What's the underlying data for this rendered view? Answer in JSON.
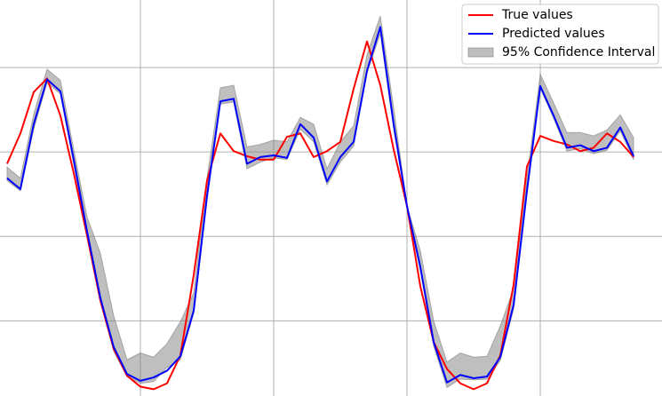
{
  "chart_data": {
    "type": "line",
    "x": [
      0,
      1,
      2,
      3,
      4,
      5,
      6,
      7,
      8,
      9,
      10,
      11,
      12,
      13,
      14,
      15,
      16,
      17,
      18,
      19,
      20,
      21,
      22,
      23,
      24,
      25,
      26,
      27,
      28,
      29,
      30,
      31,
      32,
      33,
      34,
      35,
      36,
      37,
      38,
      39,
      40,
      41,
      42,
      43,
      44,
      45,
      46,
      47
    ],
    "series": [
      {
        "name": "True values",
        "color": "#ff0000",
        "values": [
          -0.14,
          0.22,
          0.71,
          0.87,
          0.43,
          -0.25,
          -0.99,
          -1.76,
          -2.33,
          -2.65,
          -2.78,
          -2.81,
          -2.74,
          -2.41,
          -1.46,
          -0.34,
          0.22,
          0.01,
          -0.05,
          -0.09,
          -0.09,
          0.18,
          0.22,
          -0.06,
          0.01,
          0.12,
          0.75,
          1.31,
          0.79,
          0.03,
          -0.64,
          -1.59,
          -2.25,
          -2.57,
          -2.74,
          -2.81,
          -2.74,
          -2.41,
          -1.57,
          -0.17,
          0.19,
          0.13,
          0.09,
          0.01,
          0.05,
          0.22,
          0.12,
          -0.06
        ]
      },
      {
        "name": "Predicted values",
        "color": "#0000ff",
        "values": [
          -0.31,
          -0.44,
          0.33,
          0.86,
          0.72,
          -0.09,
          -0.94,
          -1.73,
          -2.31,
          -2.63,
          -2.71,
          -2.67,
          -2.59,
          -2.42,
          -1.88,
          -0.52,
          0.6,
          0.63,
          -0.14,
          -0.06,
          -0.04,
          -0.07,
          0.33,
          0.17,
          -0.35,
          -0.06,
          0.12,
          0.96,
          1.48,
          0.33,
          -0.64,
          -1.36,
          -2.25,
          -2.73,
          -2.64,
          -2.68,
          -2.66,
          -2.43,
          -1.81,
          -0.46,
          0.78,
          0.43,
          0.05,
          0.08,
          0.01,
          0.05,
          0.29,
          -0.05
        ]
      }
    ],
    "interval": {
      "name": "95% Confidence Interval",
      "color": "#808080",
      "upper": [
        -0.18,
        -0.31,
        0.45,
        0.98,
        0.85,
        0.03,
        -0.77,
        -1.2,
        -1.94,
        -2.46,
        -2.38,
        -2.43,
        -2.27,
        -2.01,
        -1.67,
        -0.31,
        0.76,
        0.79,
        0.06,
        0.09,
        0.14,
        0.12,
        0.41,
        0.33,
        -0.2,
        0.12,
        0.31,
        1.15,
        1.61,
        0.52,
        -0.64,
        -1.17,
        -2.0,
        -2.49,
        -2.38,
        -2.43,
        -2.42,
        -2.06,
        -1.62,
        -0.31,
        0.92,
        0.58,
        0.23,
        0.23,
        0.19,
        0.26,
        0.44,
        0.17
      ],
      "lower": [
        -0.34,
        -0.46,
        0.27,
        0.82,
        0.69,
        -0.15,
        -0.99,
        -1.78,
        -2.36,
        -2.66,
        -2.74,
        -2.72,
        -2.55,
        -2.46,
        -1.91,
        -0.57,
        0.57,
        0.59,
        -0.2,
        -0.12,
        -0.07,
        -0.09,
        0.27,
        0.12,
        -0.39,
        -0.12,
        0.07,
        0.94,
        1.4,
        0.27,
        -0.66,
        -1.41,
        -2.3,
        -2.79,
        -2.69,
        -2.7,
        -2.69,
        -2.47,
        -1.86,
        -0.49,
        0.75,
        0.4,
        0.01,
        0.04,
        -0.02,
        0.02,
        0.25,
        -0.09
      ]
    },
    "xlim": [
      -0.53,
      49.13
    ],
    "ylim": [
      -2.89,
      1.8
    ],
    "xticks": [
      10,
      20,
      30,
      40
    ],
    "yticks": [
      -2,
      -1,
      0,
      1
    ],
    "grid": true,
    "legend": "upper right"
  }
}
